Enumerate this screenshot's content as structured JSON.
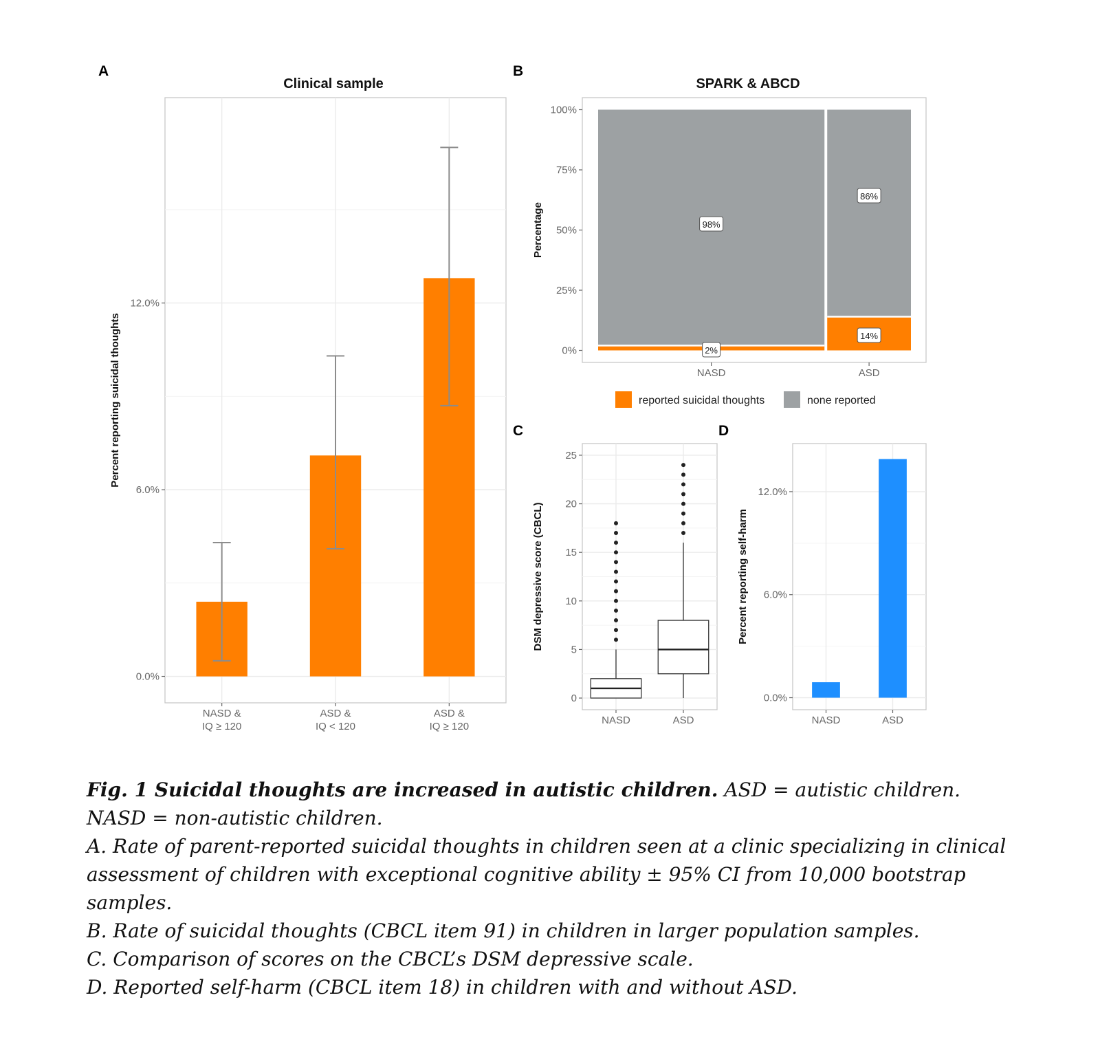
{
  "panels": {
    "a": {
      "letter": "A",
      "title": "Clinical sample"
    },
    "b": {
      "letter": "B",
      "title": "SPARK & ABCD"
    },
    "c": {
      "letter": "C"
    },
    "d": {
      "letter": "D"
    }
  },
  "legend": {
    "items": [
      {
        "label": "reported suicidal thoughts",
        "color": "#ff7f00"
      },
      {
        "label": "none reported",
        "color": "#9da1a3"
      }
    ]
  },
  "chart_data": [
    {
      "panel": "A",
      "type": "bar",
      "title": "Clinical sample",
      "ylabel": "Percent reporting suicidal thoughts",
      "xlabel": "",
      "categories": [
        [
          "NASD &",
          "IQ ≥ 120"
        ],
        [
          "ASD &",
          "IQ < 120"
        ],
        [
          "ASD &",
          "IQ ≥ 120"
        ]
      ],
      "values": [
        2.4,
        7.1,
        12.8
      ],
      "error_low": [
        0.5,
        4.1,
        8.7
      ],
      "error_high": [
        4.3,
        10.3,
        17.0
      ],
      "yticks": [
        "0.0%",
        "6.0%",
        "12.0%"
      ],
      "ytick_values": [
        0,
        6,
        12
      ],
      "ylim": [
        -0.85,
        18.6
      ],
      "bar_color": "#ff7f00",
      "error_color": "#8c8c8c",
      "grid": true
    },
    {
      "panel": "B",
      "type": "bar",
      "subtype": "mosaic",
      "title": "SPARK & ABCD",
      "ylabel": "Percentage",
      "categories": [
        "NASD",
        "ASD"
      ],
      "widths": [
        0.73,
        0.27
      ],
      "series": [
        {
          "name": "reported suicidal thoughts",
          "values": [
            2,
            14
          ],
          "labels": [
            "2%",
            "14%"
          ],
          "color": "#ff7f00"
        },
        {
          "name": "none reported",
          "values": [
            98,
            86
          ],
          "labels": [
            "98%",
            "86%"
          ],
          "color": "#9da1a3"
        }
      ],
      "yticks": [
        "0%",
        "25%",
        "50%",
        "75%",
        "100%"
      ],
      "ytick_values": [
        0,
        25,
        50,
        75,
        100
      ],
      "ylim": [
        -5,
        105
      ],
      "legend": "bottom"
    },
    {
      "panel": "C",
      "type": "box",
      "ylabel": "DSM depressive score (CBCL)",
      "categories": [
        "NASD",
        "ASD"
      ],
      "boxes": [
        {
          "min": 0,
          "q1": 0,
          "median": 1,
          "q3": 2,
          "max": 5,
          "outliers": [
            6,
            7,
            8,
            9,
            10,
            11,
            12,
            13,
            14,
            15,
            16,
            17,
            18
          ]
        },
        {
          "min": 0,
          "q1": 2.5,
          "median": 5,
          "q3": 8,
          "max": 16,
          "outliers": [
            17,
            18,
            19,
            20,
            21,
            22,
            23,
            24
          ]
        }
      ],
      "yticks": [
        "0",
        "5",
        "10",
        "15",
        "20",
        "25"
      ],
      "ytick_values": [
        0,
        5,
        10,
        15,
        20,
        25
      ],
      "ylim": [
        -1.2,
        26.2
      ],
      "grid": true
    },
    {
      "panel": "D",
      "type": "bar",
      "ylabel": "Percent reporting self-harm",
      "categories": [
        "NASD",
        "ASD"
      ],
      "values": [
        0.9,
        13.9
      ],
      "yticks": [
        "0.0%",
        "6.0%",
        "12.0%"
      ],
      "ytick_values": [
        0,
        6,
        12
      ],
      "ylim": [
        -0.7,
        14.8
      ],
      "bar_color": "#1e8fff",
      "grid": true
    }
  ],
  "caption": {
    "title": "Fig. 1 Suicidal thoughts are increased in autistic children.",
    "intro": " ASD = autistic children. NASD = non-autistic children.",
    "lines": [
      "A. Rate of parent-reported suicidal thoughts in children seen at a clinic specializing in clinical assessment of children with exceptional cognitive ability ± 95% CI from 10,000 bootstrap samples.",
      "B. Rate of suicidal thoughts (CBCL item 91) in children in larger population samples.",
      "C. Comparison of scores on the CBCL’s DSM depressive scale.",
      "D. Reported self-harm (CBCL item 18) in children with and without ASD."
    ]
  }
}
